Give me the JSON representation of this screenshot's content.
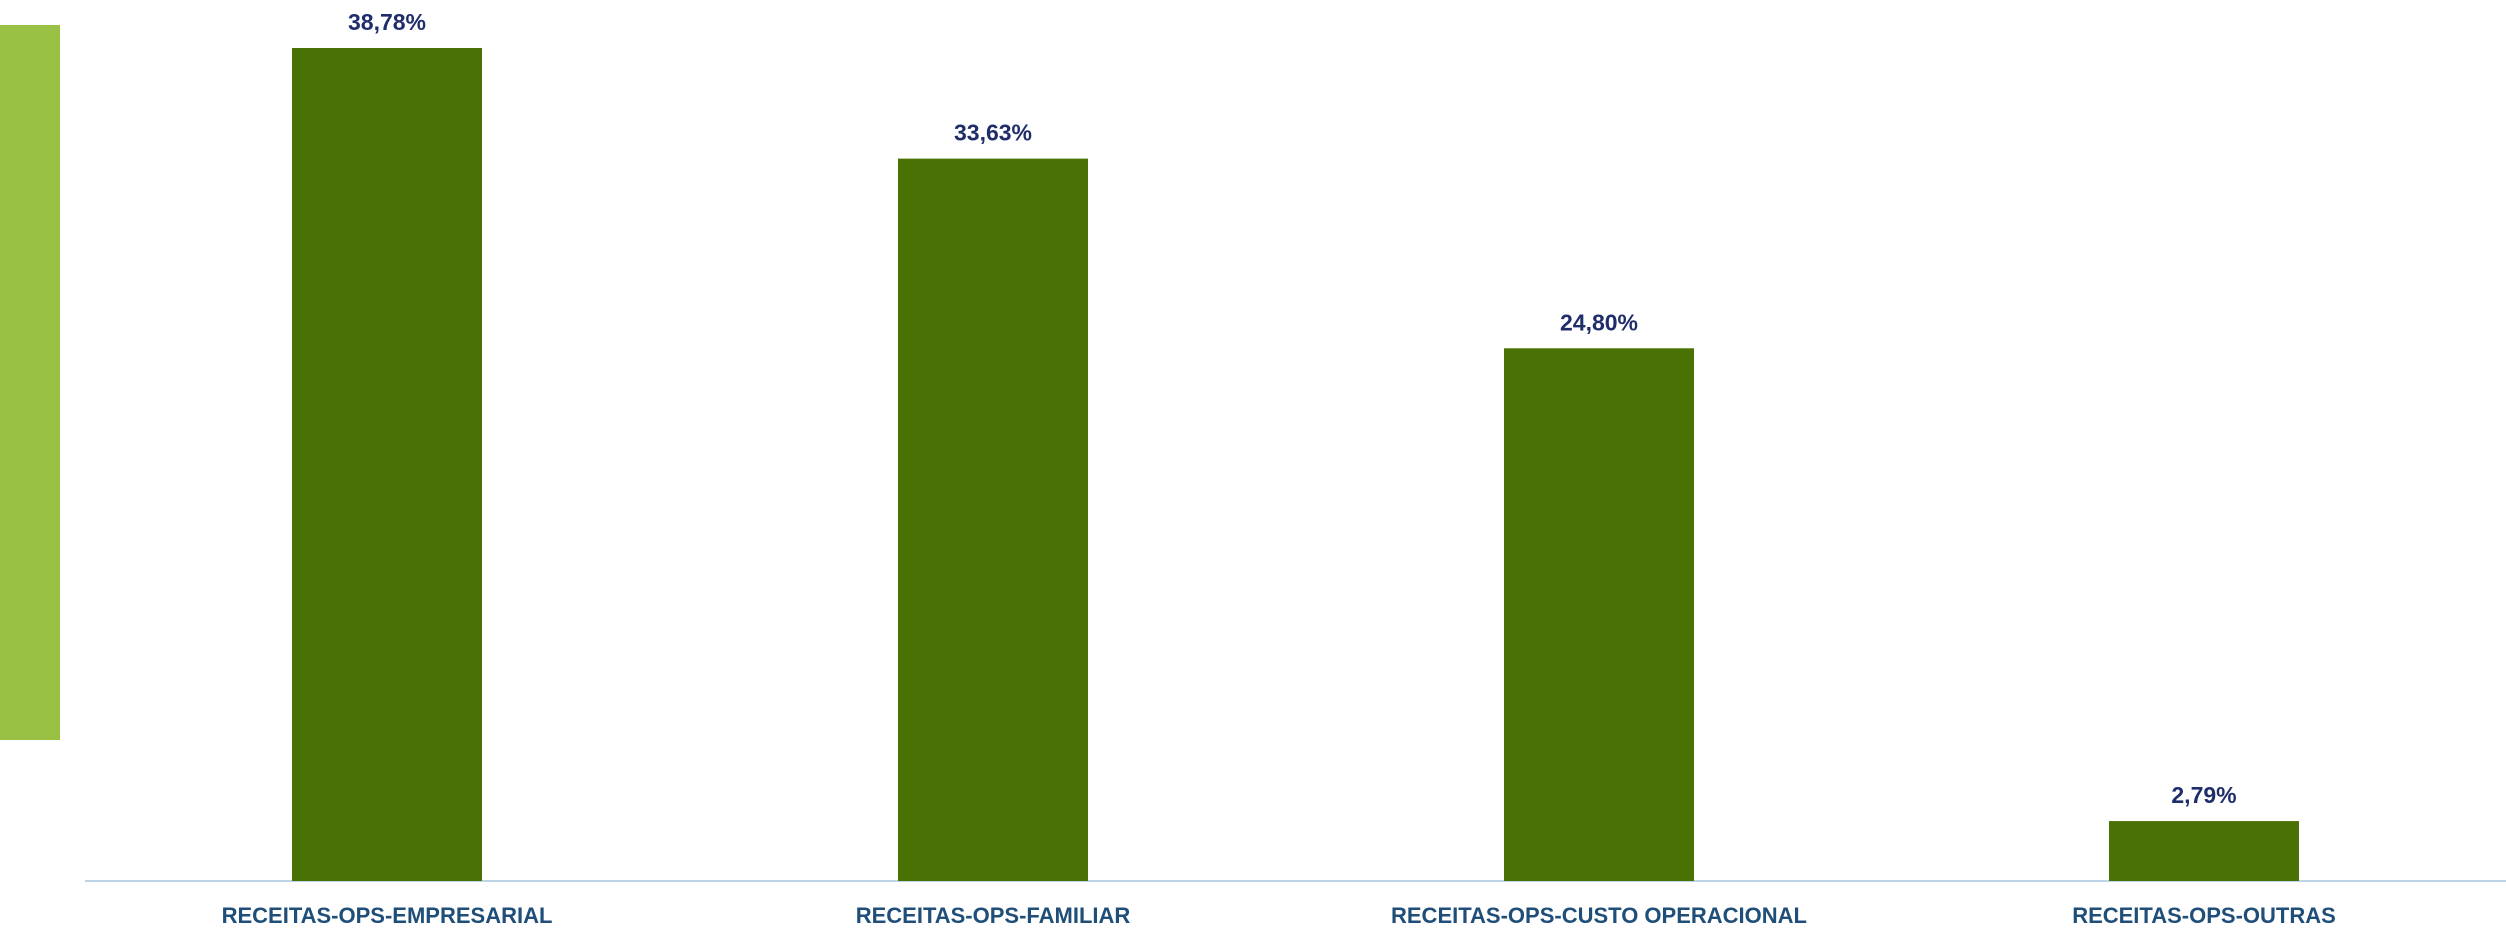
{
  "chart_data": {
    "type": "bar",
    "categories": [
      "RECEITAS-OPS-EMPRESARIAL",
      "RECEITAS-OPS-FAMILIAR",
      "RECEITAS-OPS-CUSTO OPERACIONAL",
      "RECEITAS-OPS-OUTRAS"
    ],
    "values": [
      38.78,
      33.63,
      24.8,
      2.79
    ],
    "data_labels": [
      "38,78%",
      "33,63%",
      "24,80%",
      "2,79%"
    ],
    "unit": "%",
    "ylim": [
      0,
      40
    ],
    "grid": false,
    "colors": {
      "bar": "#4a7103",
      "side_accent": "#99c143",
      "axis_line": "#bcd3e8",
      "value_label": "#1f2d6b",
      "category_label": "#1f4e79"
    }
  }
}
